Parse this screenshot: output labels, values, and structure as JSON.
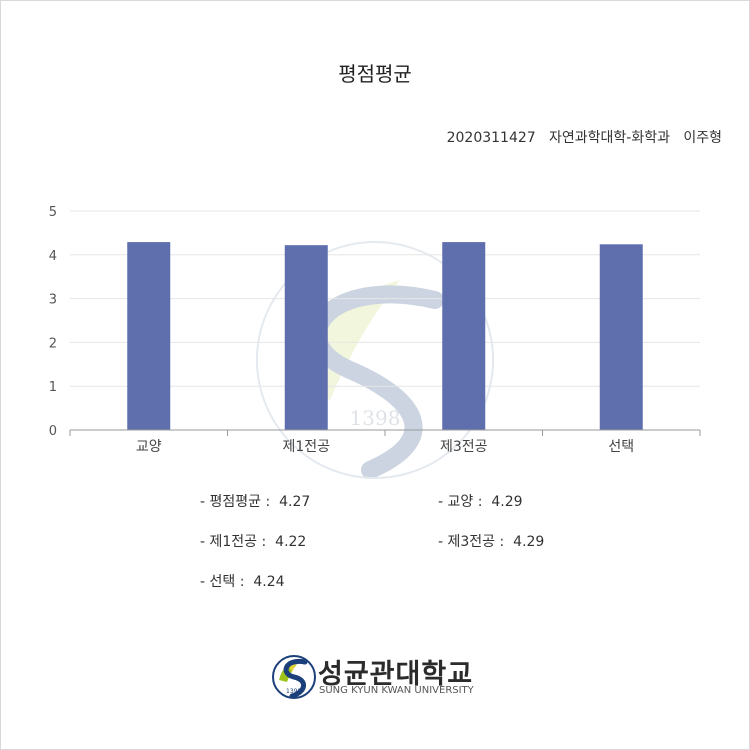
{
  "page": {
    "title": "평점평균",
    "student_line": "2020311427   자연과학대학-화학과   이주형"
  },
  "chart_data": {
    "type": "bar",
    "title": "",
    "xlabel": "",
    "ylabel": "",
    "categories": [
      "교양",
      "제1전공",
      "제3전공",
      "선택"
    ],
    "values": [
      4.29,
      4.22,
      4.29,
      4.24
    ],
    "ylim": [
      0,
      5
    ],
    "yticks": [
      "0",
      "1",
      "2",
      "3",
      "4",
      "5"
    ],
    "grid": true,
    "legend": "none",
    "bar_color": "#5f6fae"
  },
  "summary": [
    {
      "label": "평점평균",
      "value": "4.27"
    },
    {
      "label": "교양",
      "value": "4.29"
    },
    {
      "label": "제1전공",
      "value": "4.22"
    },
    {
      "label": "제3전공",
      "value": "4.29"
    },
    {
      "label": "선택",
      "value": "4.24"
    }
  ],
  "logo": {
    "korean": "성균관대학교",
    "english": "SUNG KYUN KWAN UNIVERSITY",
    "year": "1398",
    "color_blue": "#1b3f7a",
    "color_green": "#9ec41b",
    "color_yellow": "#e3d33a"
  }
}
